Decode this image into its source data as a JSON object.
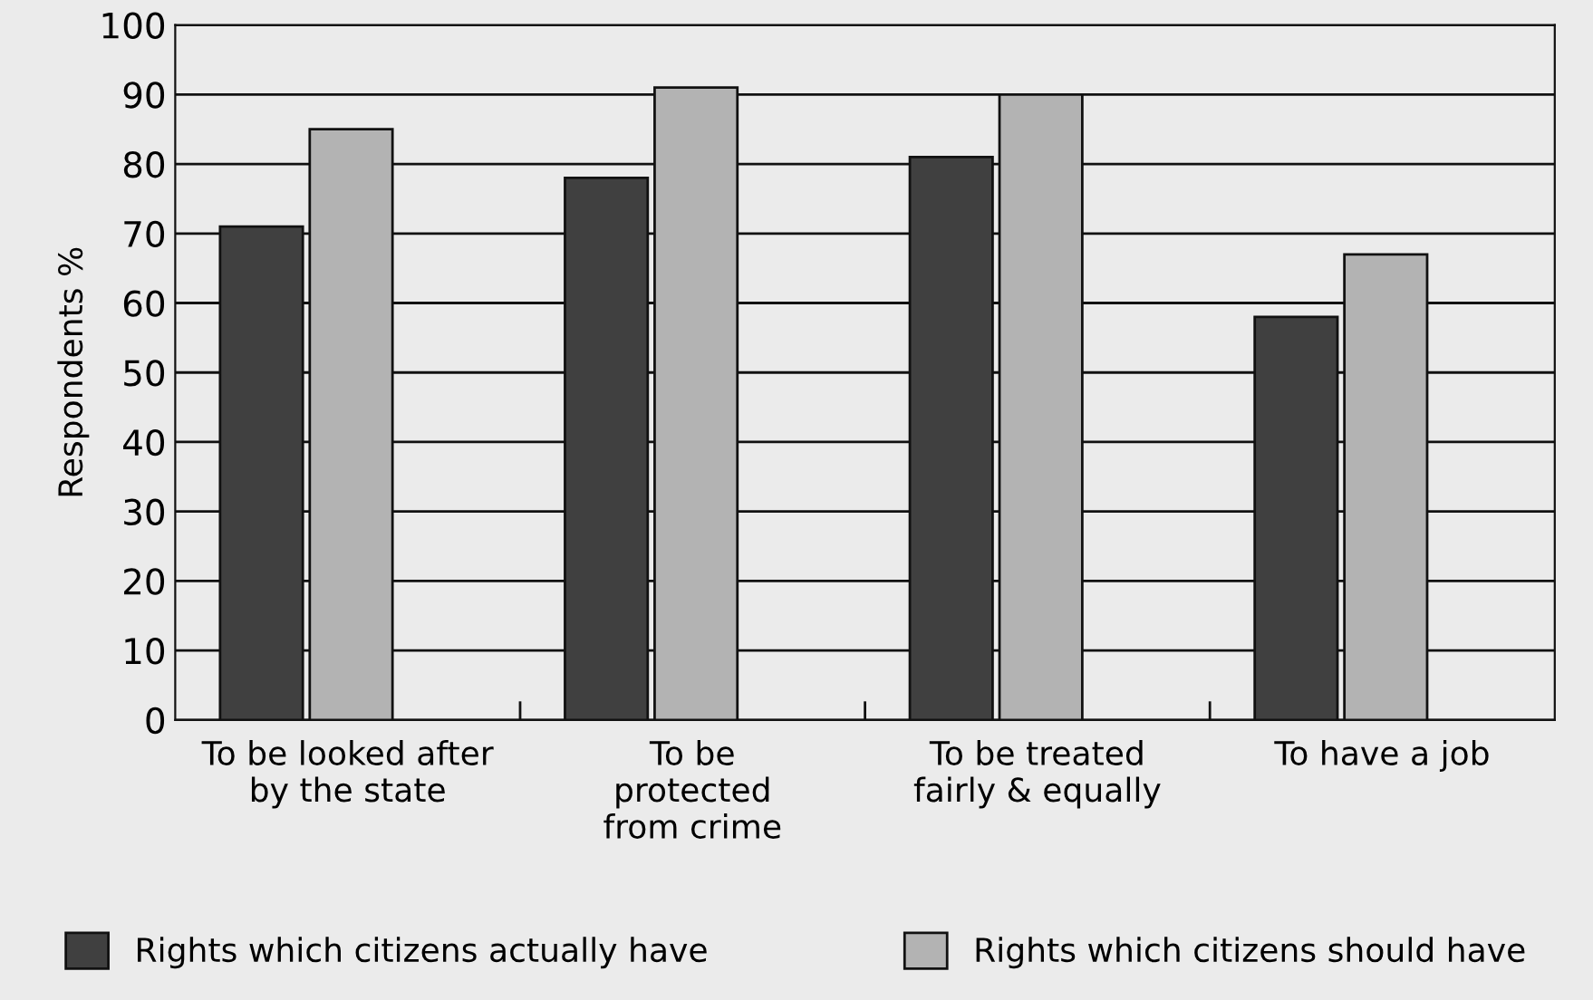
{
  "chart_data": {
    "type": "bar",
    "ylabel": "Respondents %",
    "categories": [
      "To be looked after\nby the state",
      "To be\nprotected\nfrom crime",
      "To be treated\nfairly & equally",
      "To have a job"
    ],
    "series": [
      {
        "name": "Rights which citizens actually have",
        "color": "#404040",
        "values": [
          71,
          78,
          81,
          58
        ]
      },
      {
        "name": "Rights which citizens should have",
        "color": "#b3b3b3",
        "values": [
          85,
          91,
          90,
          67
        ]
      }
    ],
    "ylim": [
      0,
      100
    ],
    "yticks": [
      0,
      10,
      20,
      30,
      40,
      50,
      60,
      70,
      80,
      90,
      100
    ],
    "grid": "y",
    "legend": "bottom"
  }
}
